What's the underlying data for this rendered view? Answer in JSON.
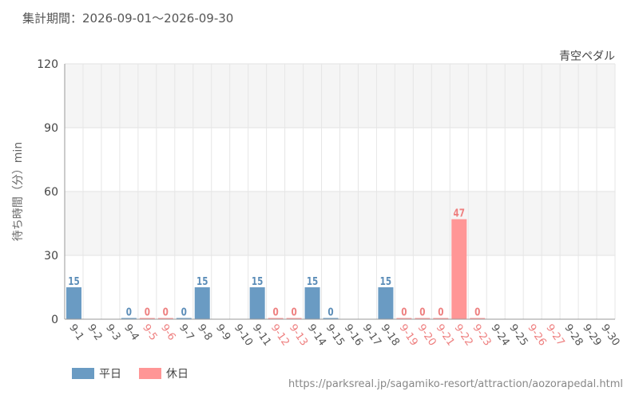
{
  "period_text": "集計期間：2026-09-01～2026-09-30",
  "source_url": "https://parksreal.jp/sagamiko-resort/attraction/aozorapedal.html",
  "chart_data": {
    "type": "bar",
    "title": "青空ペダル",
    "ylabel": "待ち時間（分）min",
    "xlabel": "",
    "ylim": [
      0,
      120
    ],
    "yticks": [
      0,
      30,
      60,
      90,
      120
    ],
    "grid": true,
    "legend_position": "bottom-left",
    "categories": [
      "9-1",
      "9-2",
      "9-3",
      "9-4",
      "9-5",
      "9-6",
      "9-7",
      "9-8",
      "9-9",
      "9-10",
      "9-11",
      "9-12",
      "9-13",
      "9-14",
      "9-15",
      "9-16",
      "9-17",
      "9-18",
      "9-19",
      "9-20",
      "9-21",
      "9-22",
      "9-23",
      "9-24",
      "9-25",
      "9-26",
      "9-27",
      "9-28",
      "9-29",
      "9-30"
    ],
    "values": [
      15,
      null,
      null,
      0,
      0,
      0,
      0,
      15,
      null,
      null,
      15,
      0,
      0,
      15,
      0,
      null,
      null,
      15,
      0,
      0,
      0,
      47,
      0,
      null,
      null,
      null,
      null,
      null,
      null,
      null
    ],
    "day_types": [
      "weekday",
      "weekday",
      "weekday",
      "weekday",
      "holiday",
      "holiday",
      "weekday",
      "weekday",
      "weekday",
      "weekday",
      "weekday",
      "holiday",
      "holiday",
      "weekday",
      "weekday",
      "weekday",
      "weekday",
      "weekday",
      "holiday",
      "holiday",
      "holiday",
      "holiday",
      "holiday",
      "weekday",
      "weekday",
      "holiday",
      "holiday",
      "weekday",
      "weekday",
      "weekday"
    ],
    "series": [
      {
        "name": "平日",
        "color": "#6a9bc3"
      },
      {
        "name": "休日",
        "color": "#ff9696"
      }
    ],
    "colors": {
      "weekday_bar": "#6a9bc3",
      "holiday_bar": "#ff9696",
      "weekday_label": "#5b8db8",
      "holiday_label": "#ee7f7f",
      "weekday_tick": "#555555",
      "holiday_tick": "#ee7f7f"
    }
  }
}
